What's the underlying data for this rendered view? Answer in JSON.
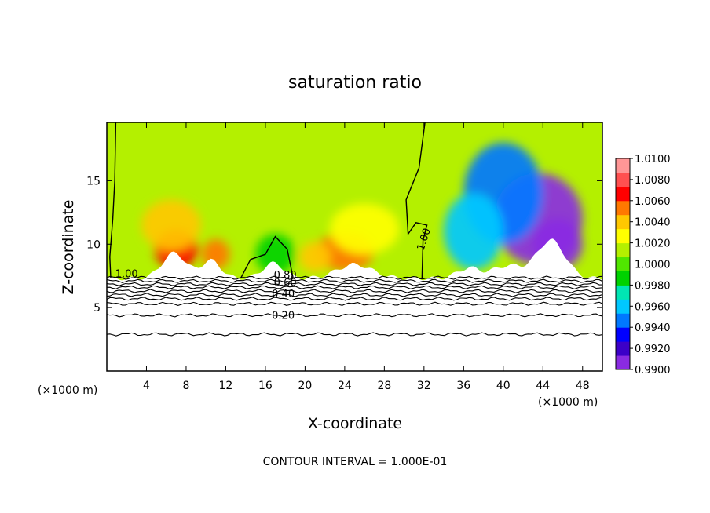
{
  "chart_data": {
    "type": "heatmap",
    "title": "saturation ratio",
    "xlabel": "X-coordinate",
    "ylabel": "Z-coordinate",
    "x_unit_left": "(×1000 m)",
    "x_unit_right": "(×1000 m)",
    "x_ticks": [
      {
        "value": 4,
        "label": "4"
      },
      {
        "value": 8,
        "label": "8"
      },
      {
        "value": 12,
        "label": "12"
      },
      {
        "value": 16,
        "label": "16"
      },
      {
        "value": 20,
        "label": "20"
      },
      {
        "value": 24,
        "label": "24"
      },
      {
        "value": 28,
        "label": "28"
      },
      {
        "value": 32,
        "label": "32"
      },
      {
        "value": 36,
        "label": "36"
      },
      {
        "value": 40,
        "label": "40"
      },
      {
        "value": 44,
        "label": "44"
      },
      {
        "value": 48,
        "label": "48"
      }
    ],
    "y_ticks": [
      {
        "value": 5,
        "label": "5"
      },
      {
        "value": 10,
        "label": "10"
      },
      {
        "value": 15,
        "label": "15"
      }
    ],
    "xlim": [
      0,
      50
    ],
    "ylim": [
      0,
      19.6
    ],
    "colorbar": {
      "range": [
        0.99,
        1.01
      ],
      "labels": [
        "1.0100",
        "1.0080",
        "1.0060",
        "1.0040",
        "1.0020",
        "1.0000",
        "0.9980",
        "0.9960",
        "0.9940",
        "0.9920",
        "0.9900"
      ],
      "colors": [
        "#8a2be2",
        "#3c00c8",
        "#0000ff",
        "#0078ff",
        "#00c8ff",
        "#00e6b4",
        "#00d200",
        "#50e600",
        "#b4f000",
        "#ffff00",
        "#ffc800",
        "#ff7800",
        "#ff0000",
        "#ff5050",
        "#ff9696"
      ]
    },
    "regions": {
      "background_level": 1.0015,
      "blobs": [
        {
          "cx": 7,
          "cz": 9.6,
          "sx": 2.2,
          "sz": 1.5,
          "value": 1.0068
        },
        {
          "cx": 11,
          "cz": 9.2,
          "sx": 1.4,
          "sz": 1.2,
          "value": 1.005
        },
        {
          "cx": 6.5,
          "cz": 11.5,
          "sx": 3.0,
          "sz": 2.0,
          "value": 1.004
        },
        {
          "cx": 24,
          "cz": 9.4,
          "sx": 3.0,
          "sz": 1.5,
          "value": 1.0055
        },
        {
          "cx": 21,
          "cz": 9.0,
          "sx": 1.6,
          "sz": 1.2,
          "value": 1.0045
        },
        {
          "cx": 26,
          "cz": 11.2,
          "sx": 3.5,
          "sz": 2.0,
          "value": 1.003
        },
        {
          "cx": 17,
          "cz": 9.2,
          "sx": 2.0,
          "sz": 1.6,
          "value": 0.999
        },
        {
          "cx": 43.5,
          "cz": 12.0,
          "sx": 4.5,
          "sz": 3.6,
          "value": 0.991
        },
        {
          "cx": 45.5,
          "cz": 10.0,
          "sx": 2.5,
          "sz": 2.0,
          "value": 0.9905
        },
        {
          "cx": 40,
          "cz": 14.0,
          "sx": 4.0,
          "sz": 4.0,
          "value": 0.9945
        },
        {
          "cx": 37,
          "cz": 11.0,
          "sx": 3.0,
          "sz": 3.0,
          "value": 0.996
        }
      ]
    },
    "contour_labels": [
      {
        "text": "1.00",
        "x": 2.0,
        "z": 7.4
      },
      {
        "text": "1.00",
        "x": 32.3,
        "z": 10.3,
        "rotate": -72
      },
      {
        "text": "0.80",
        "x": 18.0,
        "z": 7.3
      },
      {
        "text": "0.60",
        "x": 18.0,
        "z": 6.7
      },
      {
        "text": "0.40",
        "x": 17.8,
        "z": 5.8
      },
      {
        "text": "0.20",
        "x": 17.8,
        "z": 4.1
      }
    ],
    "contour_interval_text": "CONTOUR INTERVAL = 1.000E-01"
  }
}
